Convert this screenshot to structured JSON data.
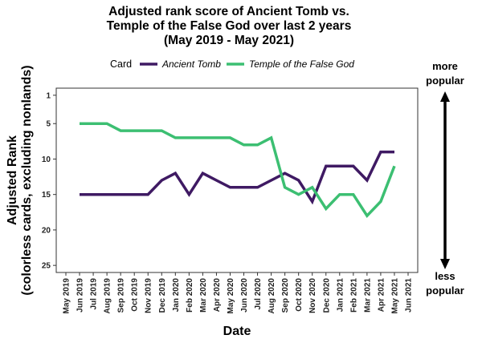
{
  "chart_data": {
    "type": "line",
    "title": [
      "Adjusted rank score of Ancient Tomb vs.",
      "Temple of the False God over last 2 years",
      "(May 2019 - May 2021)"
    ],
    "xlabel": "Date",
    "ylabel": [
      "Adjusted Rank",
      "(colorless cards, excluding nonlands)"
    ],
    "legend_title": "Card",
    "legend_position": "top",
    "grid": false,
    "x_ticks": [
      "May 2019",
      "Jun 2019",
      "Jul 2019",
      "Aug 2019",
      "Sep 2019",
      "Oct 2019",
      "Nov 2019",
      "Dec 2019",
      "Jan 2020",
      "Feb 2020",
      "Mar 2020",
      "Apr 2020",
      "May 2020",
      "Jun 2020",
      "Jul 2020",
      "Aug 2020",
      "Sep 2020",
      "Oct 2020",
      "Nov 2020",
      "Dec 2020",
      "Jan 2021",
      "Feb 2021",
      "Mar 2021",
      "Apr 2021",
      "May 2021",
      "Jun 2021"
    ],
    "y_ticks": [
      1,
      5,
      10,
      15,
      20,
      25
    ],
    "ylim": [
      26,
      0
    ],
    "y_reversed": true,
    "series": [
      {
        "name": "Ancient Tomb",
        "color": "#3f1a63",
        "x": [
          "Jun 2019",
          "Jul 2019",
          "Aug 2019",
          "Sep 2019",
          "Oct 2019",
          "Nov 2019",
          "Dec 2019",
          "Jan 2020",
          "Feb 2020",
          "Mar 2020",
          "Apr 2020",
          "May 2020",
          "Jun 2020",
          "Jul 2020",
          "Aug 2020",
          "Sep 2020",
          "Oct 2020",
          "Nov 2020",
          "Dec 2020",
          "Jan 2021",
          "Feb 2021",
          "Mar 2021",
          "Apr 2021",
          "May 2021"
        ],
        "values": [
          15,
          15,
          15,
          15,
          15,
          15,
          13,
          12,
          15,
          12,
          13,
          14,
          14,
          14,
          13,
          12,
          13,
          16,
          11,
          11,
          11,
          13,
          9,
          9
        ]
      },
      {
        "name": "Temple of the False God",
        "color": "#3cbf72",
        "x": [
          "Jun 2019",
          "Jul 2019",
          "Aug 2019",
          "Sep 2019",
          "Oct 2019",
          "Nov 2019",
          "Dec 2019",
          "Jan 2020",
          "Feb 2020",
          "Mar 2020",
          "Apr 2020",
          "May 2020",
          "Jun 2020",
          "Jul 2020",
          "Aug 2020",
          "Sep 2020",
          "Oct 2020",
          "Nov 2020",
          "Dec 2020",
          "Jan 2021",
          "Feb 2021",
          "Mar 2021",
          "Apr 2021",
          "May 2021"
        ],
        "values": [
          5,
          5,
          5,
          6,
          6,
          6,
          6,
          7,
          7,
          7,
          7,
          7,
          8,
          8,
          7,
          14,
          15,
          14,
          17,
          15,
          15,
          18,
          16,
          11
        ]
      }
    ],
    "annotations": {
      "top": [
        "more",
        "popular"
      ],
      "bottom": [
        "less",
        "popular"
      ]
    }
  }
}
